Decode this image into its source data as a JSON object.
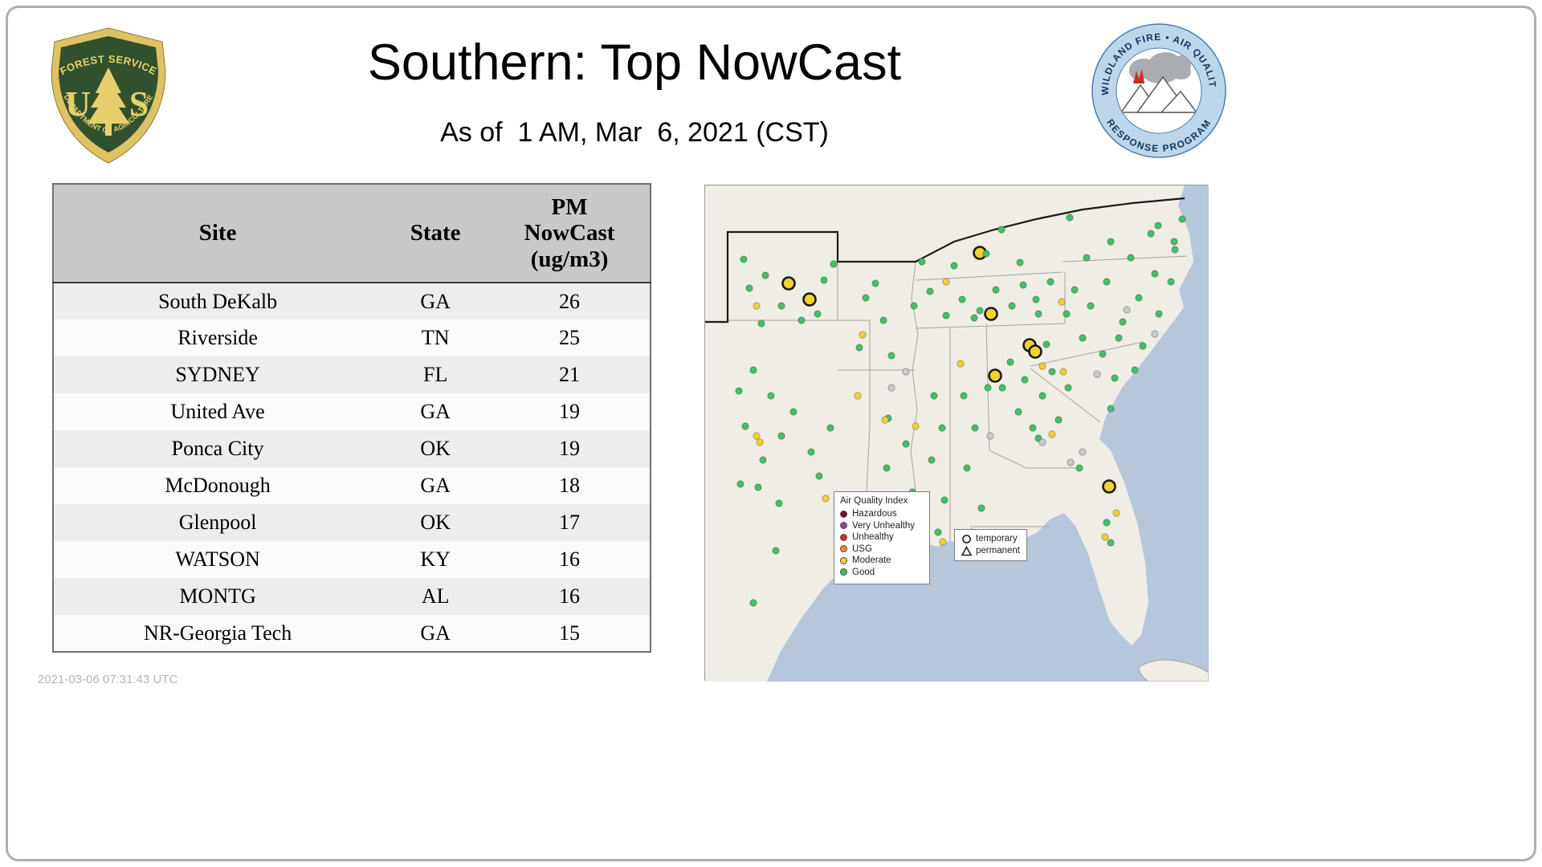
{
  "slide": {
    "title": "Southern: Top NowCast",
    "subtitle": "As of  1 AM, Mar  6, 2021 (CST)",
    "timestamp": "2021-03-06 07:31:43 UTC"
  },
  "logos": {
    "usfs": {
      "top": "FOREST SERVICE",
      "letter_u": "U",
      "letter_s": "S",
      "bottom": "DEPARTMENT OF AGRICULTURE"
    },
    "wfaqrp": {
      "top": "WILDLAND FIRE • AIR QUALITY",
      "bottom": "RESPONSE PROGRAM"
    }
  },
  "table": {
    "headers": [
      "Site",
      "State",
      "PM\nNowCast\n(ug/m3)"
    ],
    "rows": [
      [
        "South DeKalb",
        "GA",
        "26"
      ],
      [
        "Riverside",
        "TN",
        "25"
      ],
      [
        "SYDNEY",
        "FL",
        "21"
      ],
      [
        "United Ave",
        "GA",
        "19"
      ],
      [
        "Ponca City",
        "OK",
        "19"
      ],
      [
        "McDonough",
        "GA",
        "18"
      ],
      [
        "Glenpool",
        "OK",
        "17"
      ],
      [
        "WATSON",
        "KY",
        "16"
      ],
      [
        "MONTG",
        "AL",
        "16"
      ],
      [
        "NR-Georgia Tech",
        "GA",
        "15"
      ]
    ]
  },
  "map": {
    "legend_title": "Air Quality Index",
    "legend_items": [
      {
        "label": "Hazardous",
        "color": "#7e0023"
      },
      {
        "label": "Very Unhealthy",
        "color": "#8f3f97"
      },
      {
        "label": "Unhealthy",
        "color": "#e02828"
      },
      {
        "label": "USG",
        "color": "#f58b27"
      },
      {
        "label": "Moderate",
        "color": "#f1d22f"
      },
      {
        "label": "Good",
        "color": "#43bf6a"
      }
    ],
    "marker_legend": [
      {
        "label": "temporary",
        "symbol": "circle"
      },
      {
        "label": "permanent",
        "symbol": "triangle"
      }
    ],
    "point_colors": {
      "g": "#43bf6a",
      "m": "#f1d22f",
      "x": "#c6cacd"
    },
    "points": [
      [
        104,
        122,
        "T"
      ],
      [
        130,
        142,
        "T"
      ],
      [
        342,
        84,
        "T"
      ],
      [
        356,
        160,
        "T"
      ],
      [
        404,
        199,
        "T"
      ],
      [
        411,
        207,
        "T"
      ],
      [
        361,
        237,
        "T"
      ],
      [
        503,
        375,
        "T"
      ],
      [
        55,
        128,
        "g"
      ],
      [
        75,
        112,
        "g"
      ],
      [
        95,
        150,
        "g"
      ],
      [
        120,
        168,
        "g"
      ],
      [
        148,
        118,
        "g"
      ],
      [
        160,
        98,
        "g"
      ],
      [
        70,
        172,
        "g"
      ],
      [
        48,
        92,
        "g"
      ],
      [
        140,
        160,
        "g"
      ],
      [
        60,
        230,
        "g"
      ],
      [
        82,
        262,
        "g"
      ],
      [
        50,
        300,
        "g"
      ],
      [
        95,
        312,
        "g"
      ],
      [
        72,
        342,
        "g"
      ],
      [
        110,
        282,
        "g"
      ],
      [
        132,
        332,
        "g"
      ],
      [
        66,
        376,
        "g"
      ],
      [
        92,
        396,
        "g"
      ],
      [
        142,
        362,
        "g"
      ],
      [
        156,
        302,
        "g"
      ],
      [
        42,
        256,
        "g"
      ],
      [
        44,
        372,
        "g"
      ],
      [
        88,
        455,
        "g"
      ],
      [
        60,
        520,
        "g"
      ],
      [
        200,
        140,
        "g"
      ],
      [
        222,
        168,
        "g"
      ],
      [
        192,
        202,
        "g"
      ],
      [
        232,
        212,
        "g"
      ],
      [
        212,
        122,
        "g"
      ],
      [
        228,
        290,
        "g"
      ],
      [
        250,
        322,
        "g"
      ],
      [
        226,
        352,
        "g"
      ],
      [
        258,
        382,
        "g"
      ],
      [
        240,
        425,
        "g"
      ],
      [
        285,
        262,
        "g"
      ],
      [
        295,
        302,
        "g"
      ],
      [
        282,
        342,
        "g"
      ],
      [
        298,
        392,
        "g"
      ],
      [
        290,
        432,
        "g"
      ],
      [
        322,
        262,
        "g"
      ],
      [
        336,
        302,
        "g"
      ],
      [
        326,
        352,
        "g"
      ],
      [
        344,
        402,
        "g"
      ],
      [
        332,
        432,
        "g"
      ],
      [
        352,
        252,
        "g"
      ],
      [
        260,
        150,
        "g"
      ],
      [
        280,
        132,
        "g"
      ],
      [
        300,
        162,
        "g"
      ],
      [
        320,
        142,
        "g"
      ],
      [
        342,
        156,
        "g"
      ],
      [
        362,
        130,
        "g"
      ],
      [
        382,
        150,
        "g"
      ],
      [
        396,
        124,
        "g"
      ],
      [
        412,
        142,
        "g"
      ],
      [
        430,
        120,
        "g"
      ],
      [
        310,
        100,
        "g"
      ],
      [
        350,
        85,
        "g"
      ],
      [
        392,
        96,
        "g"
      ],
      [
        270,
        95,
        "g"
      ],
      [
        369,
        55,
        "g"
      ],
      [
        454,
        40,
        "g"
      ],
      [
        335,
        165,
        "g"
      ],
      [
        415,
        160,
        "g"
      ],
      [
        380,
        220,
        "g"
      ],
      [
        398,
        242,
        "g"
      ],
      [
        420,
        262,
        "g"
      ],
      [
        390,
        282,
        "g"
      ],
      [
        432,
        232,
        "g"
      ],
      [
        440,
        292,
        "g"
      ],
      [
        370,
        252,
        "g"
      ],
      [
        408,
        302,
        "g"
      ],
      [
        452,
        252,
        "g"
      ],
      [
        425,
        198,
        "g"
      ],
      [
        415,
        315,
        "g"
      ],
      [
        460,
        130,
        "g"
      ],
      [
        480,
        150,
        "g"
      ],
      [
        500,
        120,
        "g"
      ],
      [
        520,
        170,
        "g"
      ],
      [
        540,
        140,
        "g"
      ],
      [
        560,
        110,
        "g"
      ],
      [
        470,
        190,
        "g"
      ],
      [
        495,
        210,
        "g"
      ],
      [
        515,
        190,
        "g"
      ],
      [
        545,
        200,
        "g"
      ],
      [
        565,
        160,
        "g"
      ],
      [
        580,
        120,
        "g"
      ],
      [
        585,
        80,
        "g"
      ],
      [
        555,
        60,
        "g"
      ],
      [
        530,
        90,
        "g"
      ],
      [
        505,
        70,
        "g"
      ],
      [
        475,
        90,
        "g"
      ],
      [
        450,
        160,
        "g"
      ],
      [
        535,
        230,
        "g"
      ],
      [
        510,
        240,
        "g"
      ],
      [
        564,
        50,
        "g"
      ],
      [
        584,
        70,
        "g"
      ],
      [
        594,
        42,
        "g"
      ],
      [
        505,
        278,
        "g"
      ],
      [
        500,
        420,
        "g"
      ],
      [
        505,
        445,
        "g"
      ],
      [
        466,
        352,
        "g"
      ],
      [
        64,
        150,
        "m"
      ],
      [
        64,
        312,
        "m"
      ],
      [
        68,
        320,
        "m"
      ],
      [
        150,
        390,
        "m"
      ],
      [
        196,
        186,
        "m"
      ],
      [
        224,
        292,
        "m"
      ],
      [
        262,
        300,
        "m"
      ],
      [
        248,
        452,
        "m"
      ],
      [
        296,
        444,
        "m"
      ],
      [
        340,
        442,
        "m"
      ],
      [
        318,
        222,
        "m"
      ],
      [
        444,
        145,
        "m"
      ],
      [
        300,
        120,
        "m"
      ],
      [
        420,
        225,
        "m"
      ],
      [
        446,
        232,
        "m"
      ],
      [
        432,
        310,
        "m"
      ],
      [
        512,
        408,
        "m"
      ],
      [
        498,
        438,
        "m"
      ],
      [
        190,
        262,
        "m"
      ],
      [
        525,
        155,
        "x"
      ],
      [
        560,
        185,
        "x"
      ],
      [
        488,
        235,
        "x"
      ],
      [
        470,
        332,
        "x"
      ],
      [
        455,
        345,
        "x"
      ],
      [
        250,
        232,
        "x"
      ],
      [
        420,
        320,
        "x"
      ],
      [
        355,
        312,
        "x"
      ],
      [
        232,
        252,
        "x"
      ]
    ]
  }
}
